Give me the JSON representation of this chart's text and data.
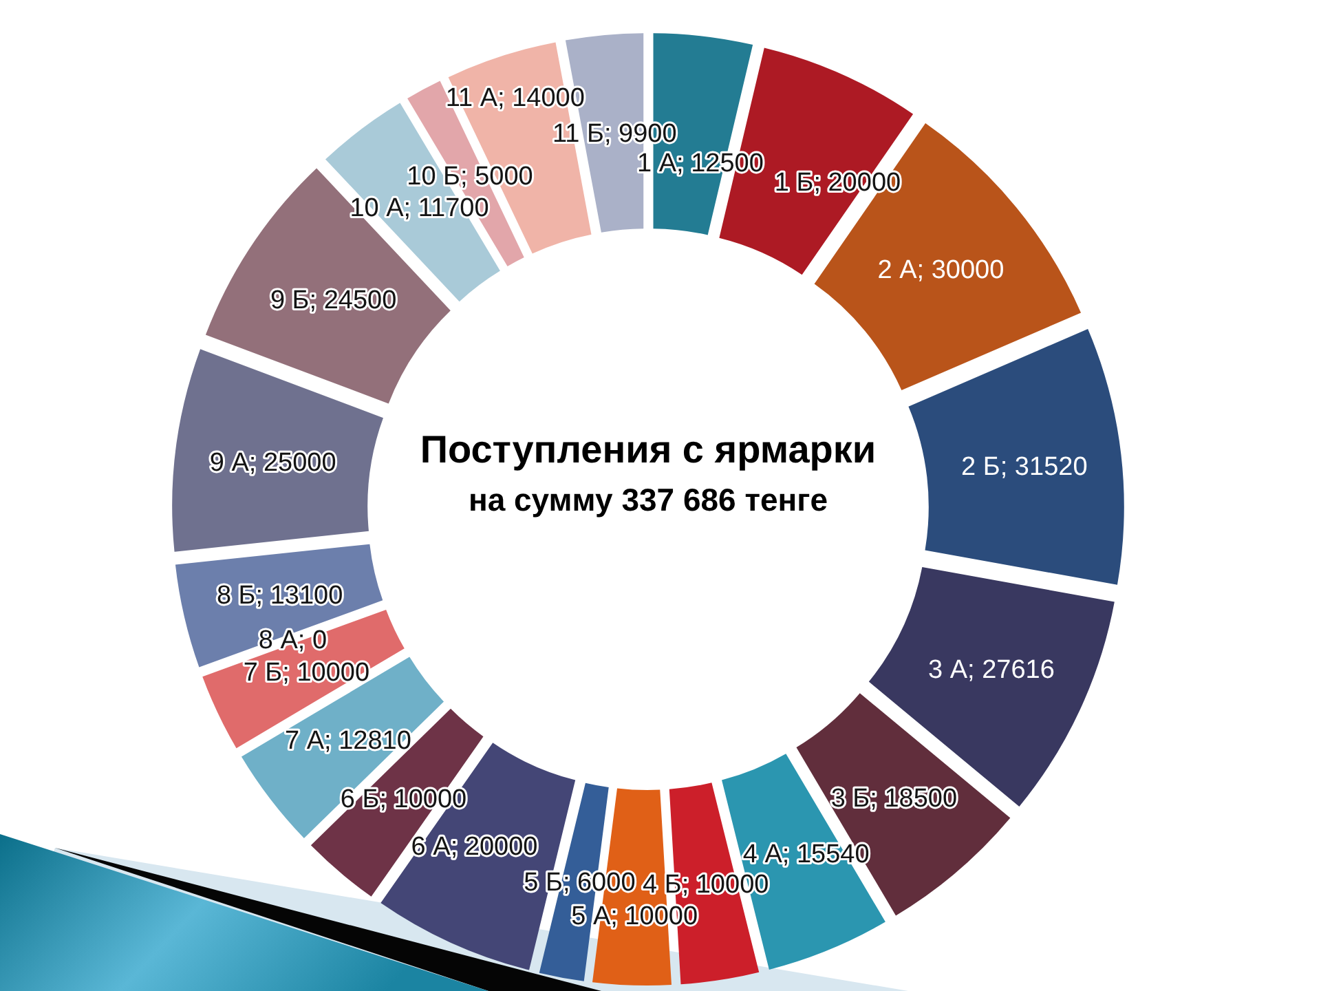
{
  "chart_data": {
    "type": "donut",
    "title": "Поступления с ярмарки",
    "subtitle": "на сумму 337 686 тенге",
    "categories": [
      "1 А",
      "1 Б",
      "2 А",
      "2 Б",
      "3 А",
      "3 Б",
      "4 А",
      "4 Б",
      "5 А",
      "5 Б",
      "6 А",
      "6 Б",
      "7 А",
      "7 Б",
      "8 А",
      "8 Б",
      "9 А",
      "9 Б",
      "10 А",
      "10 Б",
      "11 А",
      "11 Б"
    ],
    "values": [
      12500,
      20000,
      30000,
      31520,
      27616,
      18500,
      15540,
      10000,
      10000,
      6000,
      20000,
      10000,
      12810,
      10000,
      0,
      13100,
      25000,
      24500,
      11700,
      5000,
      14000,
      9900
    ],
    "value_labels": [
      "; 12500",
      "; 20000",
      "; 30000",
      "; 31520",
      "; 27616",
      "; 18500",
      "; 15540",
      "; 10000",
      "; 10000",
      "; 6000",
      "; 20000",
      "; 10000",
      "; 12810",
      "; 10000",
      "; 0",
      "; 13100",
      "; 25000",
      "; 24500",
      "; 11700",
      "; 5000",
      "; 14000",
      "; 9900"
    ],
    "colors": [
      "#237c93",
      "#ad1a24",
      "#b9541a",
      "#2b4c7c",
      "#393860",
      "#612e3c",
      "#2b96b0",
      "#cc1f2a",
      "#e06017",
      "#345e98",
      "#444676",
      "#6e3347",
      "#6fb0c8",
      "#e06b6b",
      null,
      "#6c7fac",
      "#6f718f",
      "#93707a",
      "#a9cad8",
      "#e2a6aa",
      "#f0b4a8",
      "#aab1c8"
    ]
  }
}
